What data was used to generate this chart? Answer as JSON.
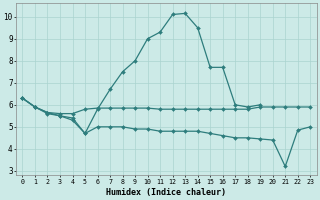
{
  "xlabel": "Humidex (Indice chaleur)",
  "bg_color": "#cceae7",
  "line_color": "#2e7d7d",
  "grid_color": "#aad4d0",
  "xlim": [
    -0.5,
    23.5
  ],
  "ylim": [
    2.8,
    10.6
  ],
  "yticks": [
    3,
    4,
    5,
    6,
    7,
    8,
    9,
    10
  ],
  "xticks": [
    0,
    1,
    2,
    3,
    4,
    5,
    6,
    7,
    8,
    9,
    10,
    11,
    12,
    13,
    14,
    15,
    16,
    17,
    18,
    19,
    20,
    21,
    22,
    23
  ],
  "line1_x": [
    0,
    1,
    2,
    3,
    4,
    5,
    6,
    7,
    8,
    9,
    10,
    11,
    12,
    13,
    14,
    15,
    16,
    17,
    18,
    19
  ],
  "line1_y": [
    6.3,
    5.9,
    5.6,
    5.5,
    5.3,
    4.7,
    5.8,
    6.7,
    7.5,
    8.0,
    9.0,
    9.3,
    10.1,
    10.15,
    9.5,
    7.7,
    7.7,
    6.0,
    5.9,
    6.0
  ],
  "line2_x": [
    0,
    1,
    2,
    3,
    4,
    5,
    6,
    7,
    8,
    9,
    10,
    11,
    12,
    13,
    14,
    15,
    16,
    17,
    18,
    19,
    20,
    21,
    22,
    23
  ],
  "line2_y": [
    6.3,
    5.9,
    5.65,
    5.6,
    5.6,
    5.8,
    5.85,
    5.85,
    5.85,
    5.85,
    5.85,
    5.8,
    5.8,
    5.8,
    5.8,
    5.8,
    5.8,
    5.8,
    5.8,
    5.9,
    5.9,
    5.9,
    5.9,
    5.9
  ],
  "line3_x": [
    0,
    1,
    2,
    3,
    4,
    5,
    6,
    7,
    8,
    9,
    10,
    11,
    12,
    13,
    14,
    15,
    16,
    17,
    18,
    19,
    20,
    21,
    22,
    23
  ],
  "line3_y": [
    6.3,
    5.9,
    5.65,
    5.5,
    5.4,
    4.7,
    5.0,
    5.0,
    5.0,
    4.9,
    4.9,
    4.8,
    4.8,
    4.8,
    4.8,
    4.7,
    4.6,
    4.5,
    4.5,
    4.45,
    4.4,
    3.2,
    4.85,
    5.0
  ]
}
